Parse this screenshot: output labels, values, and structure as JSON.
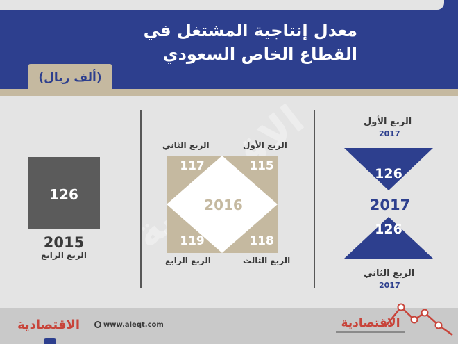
{
  "header": {
    "title_line1": "معدل إنتاجية المشتغل في",
    "title_line2": "القطاع الخاص السعودي",
    "unit": "(ألف ريال)"
  },
  "colors": {
    "navy": "#2d3f8e",
    "beige": "#c5b9a0",
    "dark_gray": "#5b5b5b",
    "background": "#e4e4e4"
  },
  "chart_data": [
    {
      "type": "bar",
      "year": "2015",
      "quarter_label": "الربع الرابع",
      "value": 126
    },
    {
      "type": "table",
      "center_label": "2016",
      "quadrants": [
        {
          "label": "الربع الأول",
          "value": 115,
          "position": "top-right"
        },
        {
          "label": "الربع الثاني",
          "value": 117,
          "position": "top-left"
        },
        {
          "label": "الربع الثالث",
          "value": 118,
          "position": "bottom-right"
        },
        {
          "label": "الربع الرابع",
          "value": 119,
          "position": "bottom-left"
        }
      ]
    },
    {
      "type": "bar",
      "center_label": "2017",
      "quarters": [
        {
          "label": "الربع الأول",
          "year": "2017",
          "value": 126
        },
        {
          "label": "الربع الثاني",
          "year": "2017",
          "value": 126
        }
      ]
    }
  ],
  "watermark": "الاقتصادية",
  "footer": {
    "logo_left": "الاقتصادية",
    "website": "www.aleqt.com",
    "logo_right": "الاقتصادية"
  }
}
